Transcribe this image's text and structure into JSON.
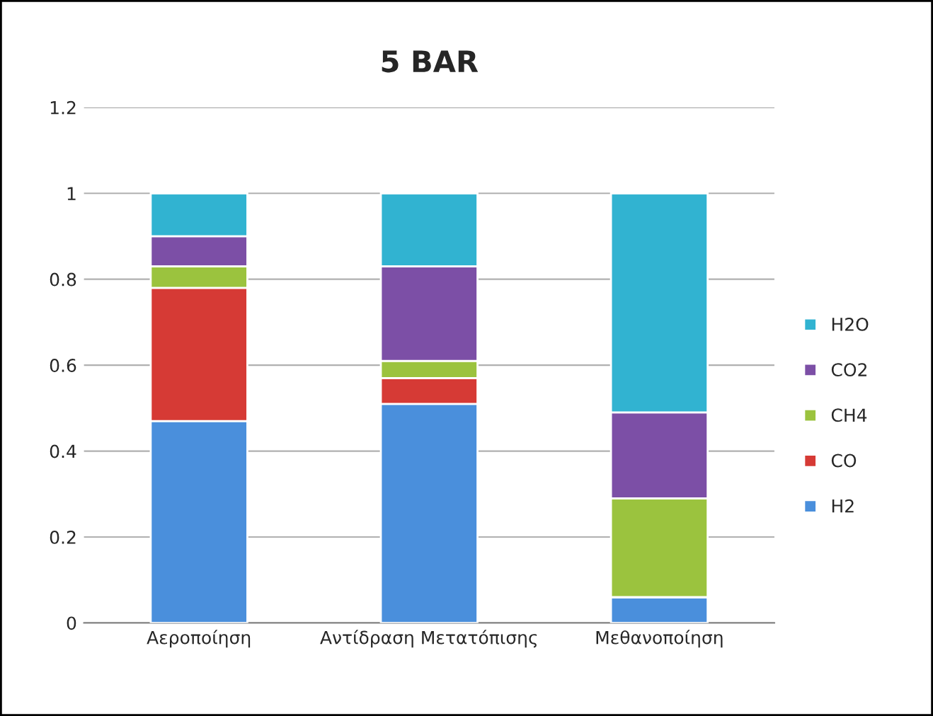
{
  "chart_data": {
    "type": "bar",
    "title": "5 BAR",
    "stacked": true,
    "categories": [
      "Αεροποίηση",
      "Αντίδραση Μετατόπισης",
      "Μεθανοποίηση"
    ],
    "series": [
      {
        "name": "H2",
        "color": "#4a8fdc",
        "values": [
          0.47,
          0.51,
          0.06
        ]
      },
      {
        "name": "CO",
        "color": "#d63a35",
        "values": [
          0.31,
          0.06,
          0
        ]
      },
      {
        "name": "CH4",
        "color": "#9bc33e",
        "values": [
          0.05,
          0.04,
          0.23
        ]
      },
      {
        "name": "CO2",
        "color": "#7c4fa6",
        "values": [
          0.07,
          0.22,
          0.2
        ]
      },
      {
        "name": "H2O",
        "color": "#31b3d1",
        "values": [
          0.1,
          0.17,
          0.51
        ]
      }
    ],
    "ylim": [
      0,
      1.2
    ],
    "yticks": [
      0,
      0.2,
      0.4,
      0.6,
      0.8,
      {
        "value": 1,
        "label": "1"
      },
      1.2
    ],
    "grid": "y",
    "legend": "right"
  }
}
